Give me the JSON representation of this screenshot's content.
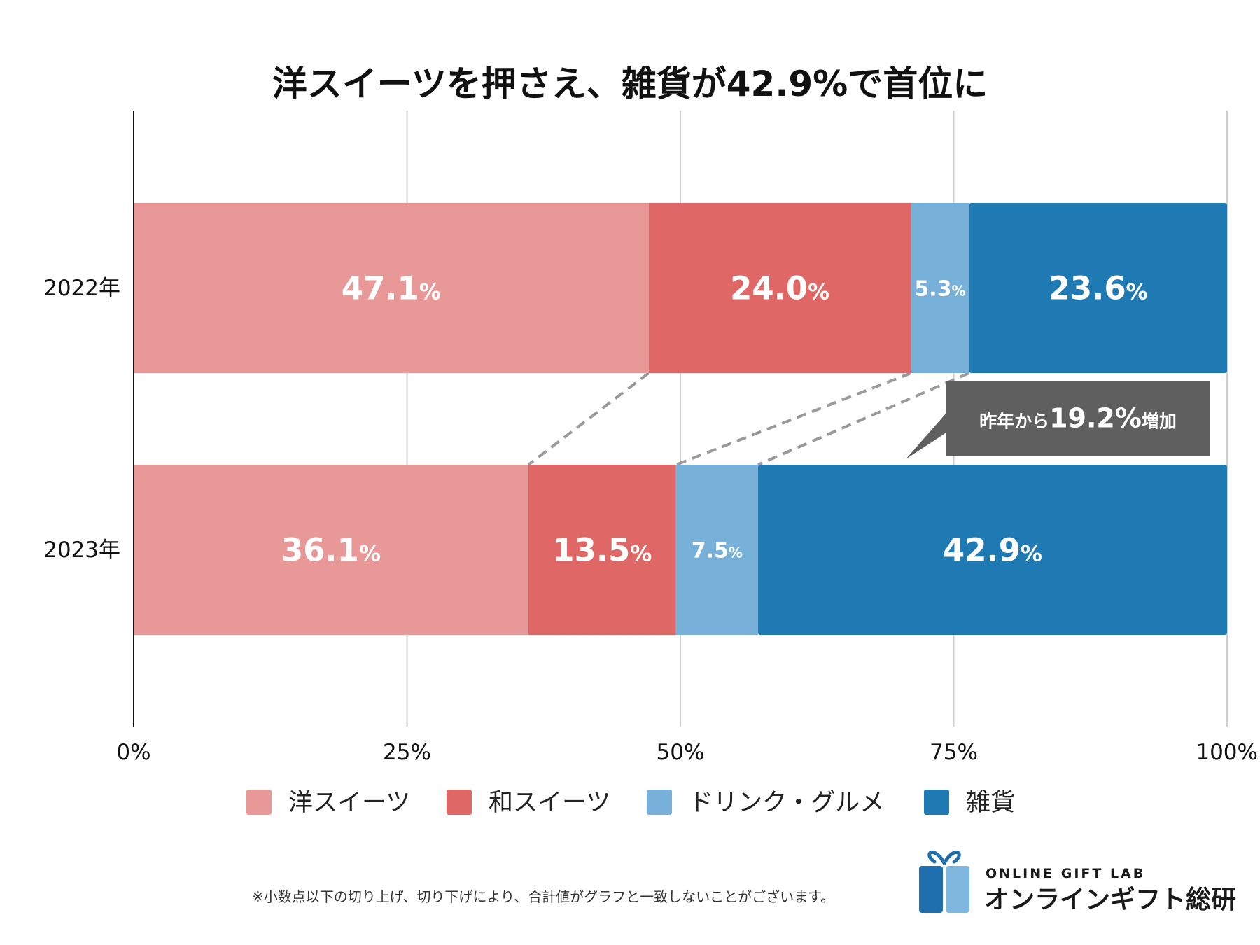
{
  "chart_data": {
    "type": "bar",
    "orientation": "horizontal",
    "stacked": true,
    "title": "洋スイーツを押さえ、雑貨が42.9%で首位に",
    "categories": [
      "2022年",
      "2023年"
    ],
    "series": [
      {
        "name": "洋スイーツ",
        "color": "#e89896",
        "values": [
          47.1,
          36.1
        ],
        "labels": [
          "47.1%",
          "36.1%"
        ]
      },
      {
        "name": "和スイーツ",
        "color": "#df6765",
        "values": [
          24.0,
          13.5
        ],
        "labels": [
          "24.0%",
          "13.5%"
        ]
      },
      {
        "name": "ドリンク・グルメ",
        "color": "#77b1da",
        "values": [
          5.3,
          7.5
        ],
        "labels": [
          "5.3%",
          "7.5%"
        ]
      },
      {
        "name": "雑貨",
        "color": "#1f7ab4",
        "values": [
          23.6,
          42.9
        ],
        "labels": [
          "23.6%",
          "42.9%"
        ]
      }
    ],
    "xlim": [
      0,
      100
    ],
    "xticks": [
      "0%",
      "25%",
      "50%",
      "75%",
      "100%"
    ],
    "grid": true,
    "legend": "bottom",
    "annotation": {
      "prefix": "昨年から",
      "value": "19.2%",
      "suffix": "増加"
    },
    "footnote": "※小数点以下の切り上げ、切り下げにより、合計値がグラフと一致しないことがございます。"
  },
  "brand": {
    "name_en": "ONLINE GIFT LAB",
    "name_jp": "オンラインギフト総研",
    "logo_icon": "gift-box-icon",
    "colors": {
      "dark": "#1f6fae",
      "light": "#7fb6de"
    }
  }
}
